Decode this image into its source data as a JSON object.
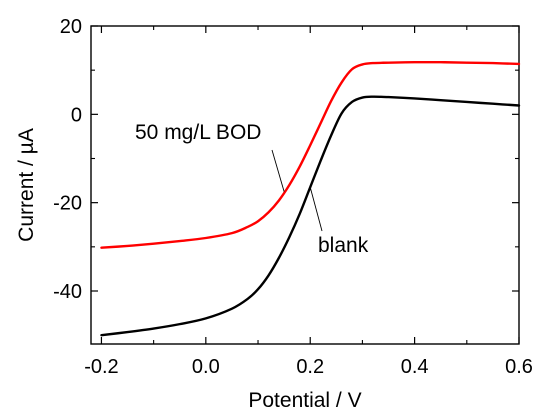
{
  "chart_data": {
    "type": "line",
    "title": "",
    "xlabel": "Potential / V",
    "ylabel": "Current / µA",
    "xlim": [
      -0.22,
      0.6
    ],
    "ylim": [
      -52,
      20
    ],
    "xticks": [
      -0.2,
      0.0,
      0.2,
      0.4,
      0.6
    ],
    "xtick_labels": [
      "-0.2",
      "0.0",
      "0.2",
      "0.4",
      "0.6"
    ],
    "yticks": [
      -40,
      -20,
      0,
      20
    ],
    "ytick_labels": [
      "-40",
      "-20",
      "0",
      "20"
    ],
    "grid": false,
    "legend": "none",
    "series": [
      {
        "name": "50 mg/L BOD",
        "color": "#ff0000",
        "x": [
          -0.2,
          -0.15,
          -0.1,
          -0.05,
          0.0,
          0.05,
          0.08,
          0.1,
          0.12,
          0.14,
          0.16,
          0.18,
          0.2,
          0.22,
          0.24,
          0.26,
          0.28,
          0.3,
          0.32,
          0.35,
          0.4,
          0.45,
          0.5,
          0.55,
          0.6
        ],
        "y": [
          -30.2,
          -29.8,
          -29.3,
          -28.7,
          -28.0,
          -26.9,
          -25.5,
          -24.2,
          -22.2,
          -19.5,
          -16.0,
          -11.8,
          -7.0,
          -2.0,
          3.0,
          7.2,
          10.2,
          11.3,
          11.6,
          11.7,
          11.8,
          11.8,
          11.7,
          11.6,
          11.4
        ]
      },
      {
        "name": "blank",
        "color": "#000000",
        "x": [
          -0.2,
          -0.15,
          -0.1,
          -0.05,
          0.0,
          0.05,
          0.08,
          0.1,
          0.12,
          0.14,
          0.16,
          0.18,
          0.2,
          0.22,
          0.24,
          0.26,
          0.28,
          0.3,
          0.32,
          0.35,
          0.4,
          0.45,
          0.5,
          0.55,
          0.6
        ],
        "y": [
          -50.0,
          -49.3,
          -48.5,
          -47.5,
          -46.2,
          -44.0,
          -41.8,
          -39.6,
          -36.5,
          -32.5,
          -27.8,
          -22.5,
          -16.5,
          -10.5,
          -4.8,
          0.2,
          2.8,
          3.8,
          4.0,
          3.9,
          3.6,
          3.2,
          2.8,
          2.4,
          2.0
        ]
      }
    ],
    "annotations": [
      {
        "text": "50 mg/L BOD",
        "series": "50 mg/L BOD",
        "arrow_to": {
          "x": 0.15,
          "y": -17.5
        }
      },
      {
        "text": "blank",
        "series": "blank",
        "arrow_to": {
          "x": 0.2,
          "y": -16.5
        }
      }
    ]
  }
}
